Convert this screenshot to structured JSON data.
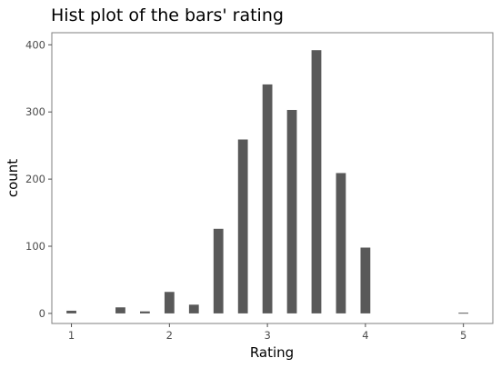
{
  "chart_data": {
    "type": "bar",
    "title": "Hist plot of the bars' rating",
    "xlabel": "Rating",
    "ylabel": "count",
    "xlim": [
      0.8,
      5.3
    ],
    "ylim": [
      -15,
      418
    ],
    "xticks": [
      1,
      2,
      3,
      4,
      5
    ],
    "yticks": [
      0,
      100,
      200,
      300,
      400
    ],
    "grid": false,
    "bar_color": "#595959",
    "bar_width": 0.1,
    "x": [
      1.0,
      1.5,
      1.75,
      2.0,
      2.25,
      2.5,
      2.75,
      3.0,
      3.25,
      3.5,
      3.75,
      4.0,
      5.0
    ],
    "values": [
      4,
      9,
      3,
      32,
      13,
      126,
      259,
      341,
      303,
      392,
      209,
      98,
      1
    ]
  }
}
